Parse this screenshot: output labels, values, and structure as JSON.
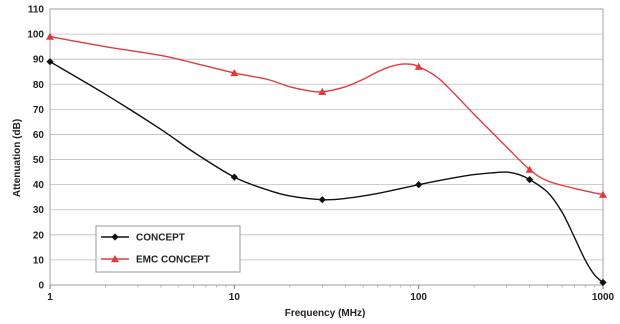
{
  "chart_data": {
    "type": "line",
    "xscale": "log",
    "xlim": [
      1,
      1000
    ],
    "ylim": [
      0,
      110
    ],
    "xlabel": "Frequency (MHz)",
    "ylabel": "Attenuation (dB)",
    "xticks": [
      1,
      10,
      100,
      1000
    ],
    "xtick_labels": [
      "1",
      "10",
      "100",
      "1000"
    ],
    "yticks": [
      0,
      10,
      20,
      30,
      40,
      50,
      60,
      70,
      80,
      90,
      100,
      110
    ],
    "grid": "horizontal",
    "legend_position": "bottom-left",
    "series": [
      {
        "name": "CONCEPT",
        "color": "#111111",
        "marker": "diamond",
        "marker_x": [
          1,
          10,
          30,
          100,
          400,
          1000
        ],
        "marker_y": [
          89,
          43,
          34,
          40,
          42,
          1
        ],
        "x": [
          1,
          2,
          4,
          6,
          10,
          15,
          20,
          30,
          40,
          60,
          100,
          150,
          200,
          250,
          300,
          350,
          400,
          500,
          600,
          700,
          800,
          900,
          1000
        ],
        "y": [
          89,
          76,
          62,
          53,
          43,
          38,
          35.5,
          34,
          34.5,
          36.5,
          40,
          42.5,
          44,
          44.7,
          45,
          44,
          42,
          37,
          29,
          19,
          10,
          4,
          1
        ]
      },
      {
        "name": "EMC CONCEPT",
        "color": "#e03a3e",
        "marker": "triangle",
        "marker_x": [
          1,
          10,
          30,
          100,
          400,
          1000
        ],
        "marker_y": [
          99,
          84.5,
          77,
          87,
          46,
          36
        ],
        "x": [
          1,
          2,
          4,
          6,
          10,
          15,
          20,
          25,
          30,
          40,
          50,
          60,
          70,
          80,
          90,
          100,
          130,
          200,
          300,
          400,
          500,
          700,
          1000
        ],
        "y": [
          99,
          95,
          91.5,
          88.5,
          84.5,
          82,
          79,
          77.5,
          77,
          79,
          82,
          85,
          87,
          88,
          88,
          87,
          82,
          68,
          55,
          46,
          41.5,
          38.5,
          36
        ]
      }
    ]
  }
}
